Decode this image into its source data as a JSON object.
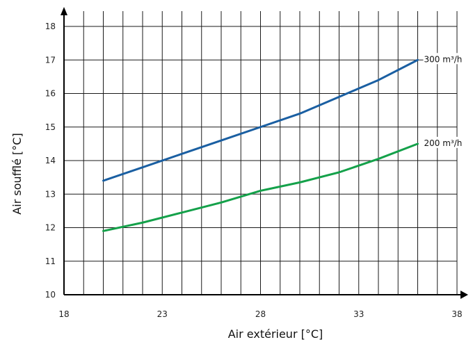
{
  "chart_data": {
    "type": "line",
    "xlabel": "Air extérieur  [°C]",
    "ylabel": "Air soufflé [°C]",
    "xlim": [
      18,
      38
    ],
    "ylim": [
      10,
      18
    ],
    "x_ticks": [
      "18",
      "23",
      "28",
      "33",
      "38"
    ],
    "y_ticks": [
      "10",
      "11",
      "12",
      "13",
      "14",
      "15",
      "16",
      "17",
      "18"
    ],
    "grid": true,
    "series": [
      {
        "name": "300 m³/h",
        "color": "#1a5fa2",
        "points": [
          [
            20,
            13.4
          ],
          [
            22,
            13.8
          ],
          [
            24,
            14.2
          ],
          [
            26,
            14.6
          ],
          [
            28,
            15.0
          ],
          [
            30,
            15.4
          ],
          [
            32,
            15.9
          ],
          [
            34,
            16.4
          ],
          [
            36,
            17.0
          ]
        ]
      },
      {
        "name": "200 m³/h",
        "color": "#14a14a",
        "points": [
          [
            20,
            11.9
          ],
          [
            22,
            12.15
          ],
          [
            24,
            12.45
          ],
          [
            26,
            12.75
          ],
          [
            28,
            13.1
          ],
          [
            30,
            13.35
          ],
          [
            32,
            13.65
          ],
          [
            34,
            14.05
          ],
          [
            36,
            14.5
          ]
        ]
      }
    ]
  }
}
